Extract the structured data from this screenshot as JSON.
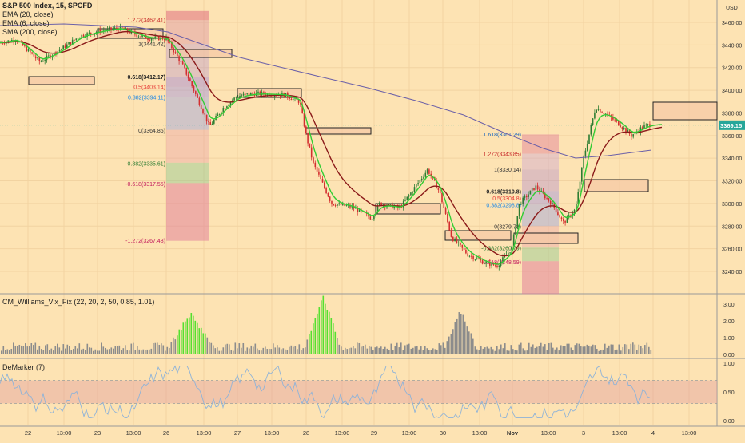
{
  "header": {
    "symbol": "S&P 500 Index, 15, SPCFD",
    "currency": "USD",
    "legend": [
      "EMA (20, close)",
      "EMA (6, close)",
      "SMA (200, close)"
    ]
  },
  "colors": {
    "background": "#fde3b3",
    "up": "#2e7d32",
    "down": "#d32f2f",
    "ema20": "#8b1a1a",
    "ema6": "#33cc33",
    "sma200": "#6a5fa8",
    "vix_high": "#55e02f",
    "vix_low": "#8c8c8c",
    "demarker": "#8fb3d8",
    "price_tag": "#26a69a"
  },
  "price_panel": {
    "last_price": "3369.15",
    "y_ticks": [
      "3460.00",
      "3440.00",
      "3420.00",
      "3400.00",
      "3380.00",
      "3360.00",
      "3340.00",
      "3320.00",
      "3300.00",
      "3280.00",
      "3260.00",
      "3240.00"
    ],
    "fib_left": [
      "1.272(3462.41)",
      "1(3441.42)",
      "0.618(3412.17)",
      "0.5(3403.14)",
      "0.382(3394.11)",
      "0(3364.86)",
      "-0.382(3335.61)",
      "-0.618(3317.55)",
      "-1.272(3267.48)"
    ],
    "fib_right": [
      "1.618(3361.29)",
      "1.272(3343.85)",
      "1(3330.14)",
      "0.618(3310.8)",
      "0.5(3304.8)",
      "0.382(3298.8)",
      "0(3279.78)",
      "-0.382(3260.79)",
      "-0.618(3248.59)"
    ]
  },
  "vix_panel": {
    "title": "CM_Williams_Vix_Fix (22, 20, 2, 50, 0.85, 1.01)",
    "y_ticks": [
      "3.00",
      "2.00",
      "1.00",
      "0.00"
    ]
  },
  "demarker_panel": {
    "title": "DeMarker (7)",
    "y_ticks": [
      "1.00",
      "0.50",
      "0.00"
    ]
  },
  "x_axis": {
    "labels": [
      "22",
      "13:00",
      "23",
      "13:00",
      "26",
      "13:00",
      "27",
      "13:00",
      "28",
      "13:00",
      "29",
      "13:00",
      "30",
      "13:00",
      "Nov",
      "13:00",
      "3",
      "13:00",
      "4",
      "13:00"
    ]
  },
  "chart_data": [
    {
      "type": "candlestick",
      "title": "S&P 500 Index, 15, SPCFD",
      "series_names": [
        "EMA (20, close)",
        "EMA (6, close)",
        "SMA (200, close)"
      ],
      "ylim": [
        3230,
        3470
      ],
      "last_price": 3369.15,
      "close_path": [
        {
          "x": "22",
          "y": 3442
        },
        {
          "x": "22 13:00",
          "y": 3438
        },
        {
          "x": "23",
          "y": 3458
        },
        {
          "x": "23 13:00",
          "y": 3448
        },
        {
          "x": "26",
          "y": 3446
        },
        {
          "x": "26 13:00",
          "y": 3368
        },
        {
          "x": "27",
          "y": 3395
        },
        {
          "x": "27 13:00",
          "y": 3396
        },
        {
          "x": "28",
          "y": 3360
        },
        {
          "x": "28",
          "y": 3302
        },
        {
          "x": "28 13:00",
          "y": 3297
        },
        {
          "x": "29",
          "y": 3285
        },
        {
          "x": "29 13:00",
          "y": 3312
        },
        {
          "x": "30",
          "y": 3280
        },
        {
          "x": "30 13:00",
          "y": 3242
        },
        {
          "x": "Nov",
          "y": 3268
        },
        {
          "x": "Nov 13:00",
          "y": 3310
        },
        {
          "x": "3",
          "y": 3285
        },
        {
          "x": "3 13:00",
          "y": 3380
        },
        {
          "x": "4",
          "y": 3372
        }
      ]
    },
    {
      "type": "bar",
      "title": "CM_Williams_Vix_Fix (22, 20, 2, 50, 0.85, 1.01)",
      "ylim": [
        0,
        3.5
      ],
      "high_value_spikes": [
        {
          "x": "26",
          "max": 2.2
        },
        {
          "x": "28",
          "max": 3.3
        },
        {
          "x": "30",
          "max": 2.3
        }
      ]
    },
    {
      "type": "line",
      "title": "DeMarker (7)",
      "ylim": [
        0,
        1
      ],
      "band": [
        0.3,
        0.7
      ]
    }
  ]
}
